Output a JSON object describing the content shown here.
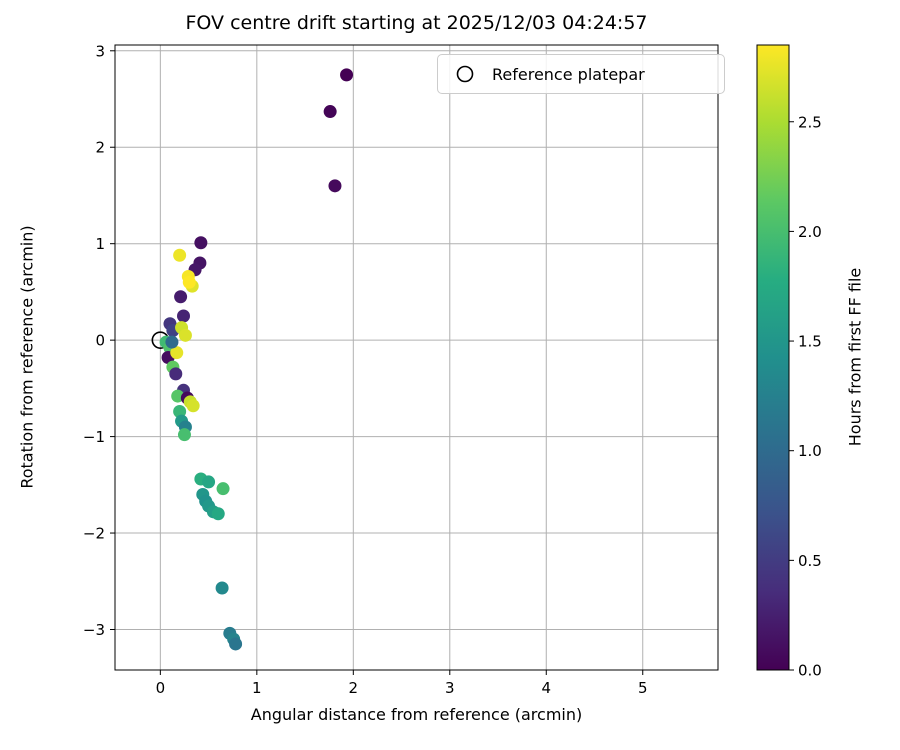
{
  "chart_data": {
    "type": "scatter",
    "title": "FOV centre drift starting at 2025/12/03 04:24:57",
    "xlabel": "Angular distance from reference (arcmin)",
    "ylabel": "Rotation from reference (arcmin)",
    "colorbar_label": "Hours from first FF file",
    "legend_label": "Reference platepar",
    "xlim": [
      -0.47,
      5.78
    ],
    "ylim": [
      -3.42,
      3.06
    ],
    "grid": true,
    "grid_color": "#b0b0b0",
    "x_ticks": [
      {
        "value": 0,
        "label": "0"
      },
      {
        "value": 1,
        "label": "1"
      },
      {
        "value": 2,
        "label": "2"
      },
      {
        "value": 3,
        "label": "3"
      },
      {
        "value": 4,
        "label": "4"
      },
      {
        "value": 5,
        "label": "5"
      }
    ],
    "y_ticks": [
      {
        "value": 3,
        "label": "3"
      },
      {
        "value": 2,
        "label": "2"
      },
      {
        "value": 1,
        "label": "1"
      },
      {
        "value": 0,
        "label": "0"
      },
      {
        "value": -1,
        "label": "−1"
      },
      {
        "value": -2,
        "label": "−2"
      },
      {
        "value": -3,
        "label": "−3"
      }
    ],
    "colorbar_ticks": [
      {
        "value": 0,
        "label": "0.0"
      },
      {
        "value": 0.5,
        "label": "0.5"
      },
      {
        "value": 1,
        "label": "1.0"
      },
      {
        "value": 1.5,
        "label": "1.5"
      },
      {
        "value": 2,
        "label": "2.0"
      },
      {
        "value": 2.5,
        "label": "2.5"
      }
    ],
    "hours_range": [
      0,
      2.85
    ],
    "colormap": {
      "name": "viridis",
      "stops": [
        "#440154",
        "#472d7b",
        "#3b528b",
        "#2c718e",
        "#21908d",
        "#27ad81",
        "#5cc863",
        "#aadc32",
        "#fde725"
      ]
    },
    "reference_point": {
      "x": 0,
      "y": 0
    },
    "points": [
      [
        1.93,
        2.75,
        0.0
      ],
      [
        1.76,
        2.37,
        0.03
      ],
      [
        1.81,
        1.6,
        0.07
      ],
      [
        0.42,
        1.01,
        0.12
      ],
      [
        0.41,
        0.8,
        0.15
      ],
      [
        0.36,
        0.73,
        0.18
      ],
      [
        0.21,
        0.45,
        0.22
      ],
      [
        0.24,
        0.25,
        0.28
      ],
      [
        0.2,
        0.88,
        2.78
      ],
      [
        0.29,
        0.66,
        2.82
      ],
      [
        0.33,
        0.56,
        2.72
      ],
      [
        0.3,
        0.6,
        2.85
      ],
      [
        0.1,
        0.17,
        0.45
      ],
      [
        0.13,
        0.1,
        0.55
      ],
      [
        0.06,
        -0.02,
        1.95
      ],
      [
        0.1,
        -0.08,
        2.05
      ],
      [
        0.08,
        -0.18,
        0.1
      ],
      [
        0.13,
        -0.28,
        2.15
      ],
      [
        0.16,
        -0.35,
        0.35
      ],
      [
        0.22,
        0.13,
        2.65
      ],
      [
        0.26,
        0.05,
        2.7
      ],
      [
        0.17,
        -0.13,
        2.75
      ],
      [
        0.12,
        -0.02,
        1.0
      ],
      [
        0.24,
        -0.52,
        0.4
      ],
      [
        0.18,
        -0.58,
        2.1
      ],
      [
        0.28,
        -0.6,
        0.08
      ],
      [
        0.31,
        -0.64,
        2.62
      ],
      [
        0.34,
        -0.68,
        2.68
      ],
      [
        0.2,
        -0.74,
        1.9
      ],
      [
        0.22,
        -0.84,
        1.55
      ],
      [
        0.26,
        -0.9,
        1.25
      ],
      [
        0.25,
        -0.98,
        2.0
      ],
      [
        0.42,
        -1.44,
        1.8
      ],
      [
        0.5,
        -1.47,
        1.7
      ],
      [
        0.44,
        -1.6,
        1.5
      ],
      [
        0.47,
        -1.67,
        1.45
      ],
      [
        0.5,
        -1.72,
        1.52
      ],
      [
        0.55,
        -1.78,
        1.6
      ],
      [
        0.6,
        -1.8,
        1.72
      ],
      [
        0.65,
        -1.54,
        2.0
      ],
      [
        0.64,
        -2.57,
        1.35
      ],
      [
        0.72,
        -3.04,
        1.2
      ],
      [
        0.76,
        -3.1,
        1.28
      ],
      [
        0.78,
        -3.15,
        1.12
      ]
    ]
  }
}
